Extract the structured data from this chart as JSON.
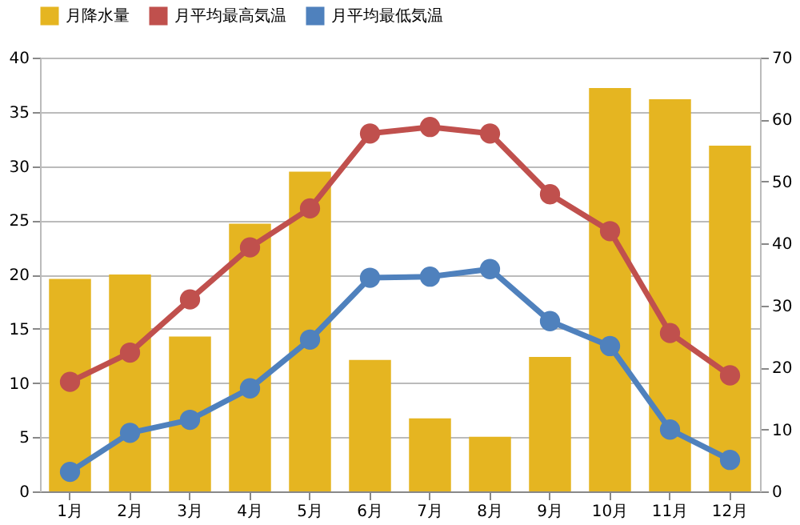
{
  "chart_data": {
    "type": "bar",
    "categories": [
      "1月",
      "2月",
      "3月",
      "4月",
      "5月",
      "6月",
      "7月",
      "8月",
      "9月",
      "10月",
      "11月",
      "12月"
    ],
    "series": [
      {
        "name": "月降水量",
        "axis": "y2",
        "color": "#e5b521",
        "values": [
          34.3,
          35,
          25,
          43.2,
          51.6,
          21.2,
          11.8,
          8.8,
          21.7,
          65.1,
          63.3,
          55.8
        ]
      },
      {
        "name": "月平均最高気温",
        "type": "line",
        "color": "#c0504d",
        "values": [
          10.1,
          12.8,
          17.7,
          22.5,
          26.1,
          33.0,
          33.6,
          33.0,
          27.4,
          24.0,
          14.6,
          10.7
        ]
      },
      {
        "name": "月平均最低気温",
        "type": "line",
        "color": "#4f81bd",
        "values": [
          1.8,
          5.4,
          6.6,
          9.5,
          14.0,
          19.7,
          19.8,
          20.5,
          15.7,
          13.4,
          5.7,
          2.9
        ]
      }
    ],
    "ylim": [
      0,
      40
    ],
    "yticks": [
      0,
      5,
      10,
      15,
      20,
      25,
      30,
      35,
      40
    ],
    "y2lim": [
      0,
      70
    ],
    "y2ticks": [
      0,
      10,
      20,
      30,
      40,
      50,
      60,
      70
    ],
    "grid": "y",
    "legend": "top",
    "marker": "circle",
    "line_style": "solid"
  }
}
